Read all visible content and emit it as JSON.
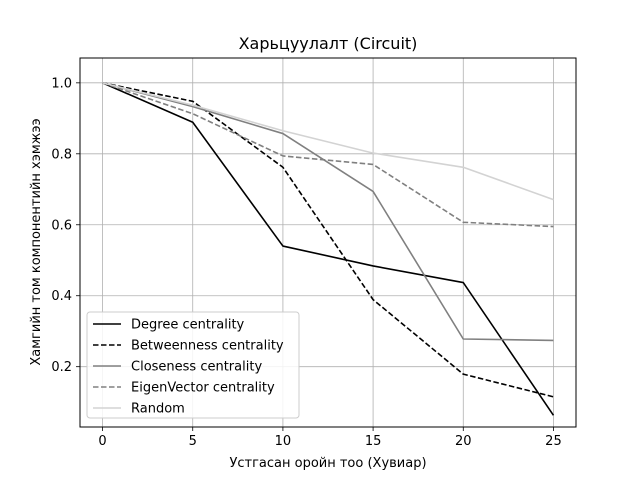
{
  "chart_data": {
    "type": "line",
    "title": "Харьцуулалт (Circuit)",
    "xlabel": "Устгасан оройн тоо (Хувиар)",
    "ylabel": "Хамгийн том компонентийн хэмжээ",
    "xlim": [
      -1.25,
      26.25
    ],
    "ylim": [
      0.03,
      1.07
    ],
    "xticks": [
      0,
      5,
      10,
      15,
      20,
      25
    ],
    "yticks": [
      0.2,
      0.4,
      0.6,
      0.8,
      1.0
    ],
    "ytick_labels": [
      "0.2",
      "0.4",
      "0.6",
      "0.8",
      "1.0"
    ],
    "grid": true,
    "legend_position": "lower left",
    "x": [
      0,
      5,
      10,
      15,
      20,
      25
    ],
    "series": [
      {
        "name": "Degree centrality",
        "values": [
          1.0,
          0.889,
          0.54,
          0.484,
          0.437,
          0.063
        ],
        "color": "#000000",
        "dash": "solid"
      },
      {
        "name": "Betweenness centrality",
        "values": [
          1.0,
          0.948,
          0.762,
          0.389,
          0.179,
          0.115
        ],
        "color": "#000000",
        "dash": "dashed"
      },
      {
        "name": "Closeness centrality",
        "values": [
          1.0,
          0.933,
          0.857,
          0.694,
          0.278,
          0.274
        ],
        "color": "#808080",
        "dash": "solid"
      },
      {
        "name": "EigenVector centrality",
        "values": [
          1.0,
          0.913,
          0.794,
          0.77,
          0.607,
          0.595
        ],
        "color": "#808080",
        "dash": "dashed"
      },
      {
        "name": "Random",
        "values": [
          1.0,
          0.937,
          0.865,
          0.802,
          0.762,
          0.671
        ],
        "color": "#d3d3d3",
        "dash": "solid"
      }
    ]
  }
}
